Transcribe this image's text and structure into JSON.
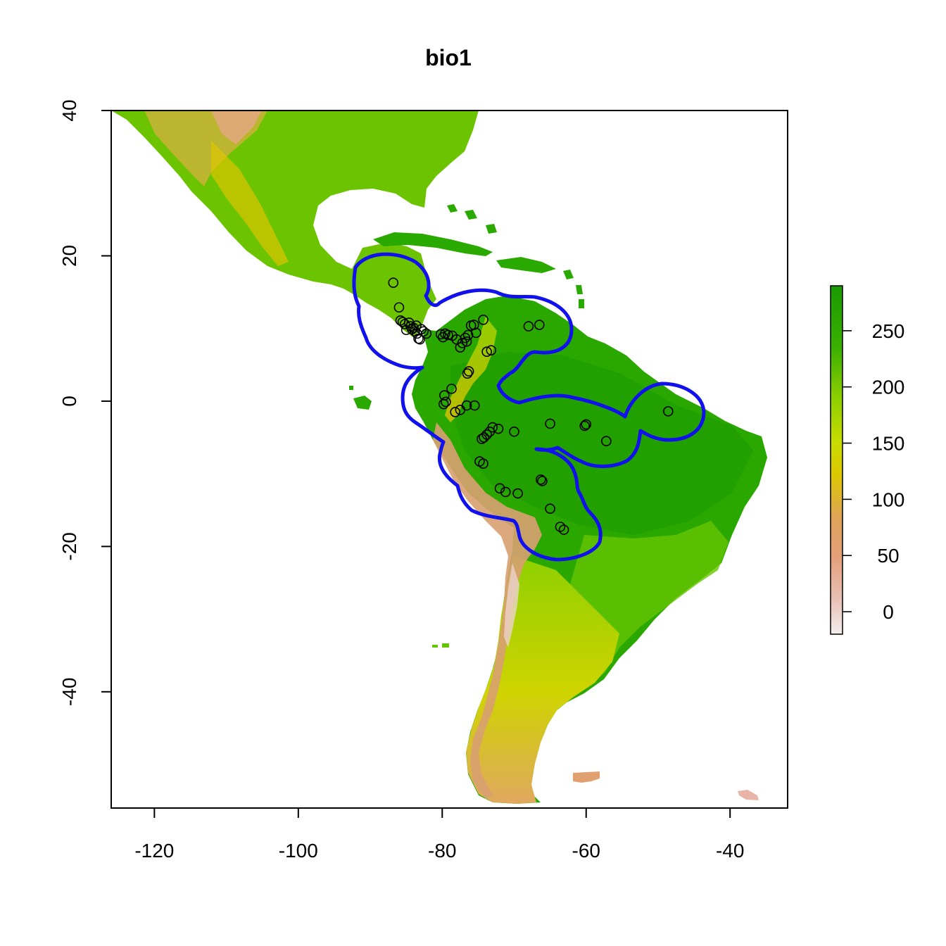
{
  "title": "bio1",
  "chart_data": {
    "type": "raster-map",
    "title": "bio1",
    "xlabel": "",
    "ylabel": "",
    "xlim": [
      -126,
      -32
    ],
    "ylim": [
      -56,
      40
    ],
    "x_ticks": [
      -120,
      -100,
      -80,
      -60,
      -40
    ],
    "y_ticks": [
      40,
      20,
      0,
      -20,
      -40
    ],
    "legend": {
      "placement": "right",
      "range": [
        -20,
        290
      ],
      "ticks": [
        0,
        50,
        100,
        150,
        200,
        250
      ],
      "colors": [
        "#f2f2f2",
        "#e8b3a3",
        "#e19a58",
        "#dcc800",
        "#c6dc00",
        "#7ec800",
        "#2aaa00",
        "#1a9c00"
      ]
    },
    "buffer_outline_color": "#1111ee",
    "occurrence_points": [
      [
        -86.8,
        16.3
      ],
      [
        -86.0,
        12.9
      ],
      [
        -85.8,
        11.1
      ],
      [
        -85.5,
        10.9
      ],
      [
        -85.2,
        10.6
      ],
      [
        -85.0,
        9.8
      ],
      [
        -84.6,
        10.8
      ],
      [
        -84.4,
        10.3
      ],
      [
        -84.2,
        9.9
      ],
      [
        -84.0,
        10.1
      ],
      [
        -83.8,
        9.6
      ],
      [
        -83.6,
        10.4
      ],
      [
        -83.5,
        9.3
      ],
      [
        -83.3,
        8.6
      ],
      [
        -83.1,
        8.5
      ],
      [
        -82.9,
        9.9
      ],
      [
        -82.6,
        9.6
      ],
      [
        -82.2,
        9.3
      ],
      [
        -80.2,
        9.2
      ],
      [
        -79.9,
        8.8
      ],
      [
        -79.6,
        9.3
      ],
      [
        -79.2,
        9.1
      ],
      [
        -78.6,
        9.0
      ],
      [
        -78.0,
        8.5
      ],
      [
        -77.5,
        7.4
      ],
      [
        -77.2,
        8.0
      ],
      [
        -76.8,
        8.7
      ],
      [
        -76.6,
        8.2
      ],
      [
        -76.4,
        9.1
      ],
      [
        -76.0,
        10.4
      ],
      [
        -75.6,
        10.5
      ],
      [
        -75.3,
        9.4
      ],
      [
        -74.3,
        11.2
      ],
      [
        -73.8,
        6.8
      ],
      [
        -73.2,
        7.0
      ],
      [
        -76.3,
        4.1
      ],
      [
        -76.5,
        3.8
      ],
      [
        -78.7,
        1.7
      ],
      [
        -79.7,
        0.8
      ],
      [
        -79.8,
        -0.4
      ],
      [
        -79.5,
        -0.1
      ],
      [
        -78.2,
        -1.5
      ],
      [
        -77.5,
        -1.2
      ],
      [
        -76.6,
        -0.6
      ],
      [
        -75.5,
        -0.6
      ],
      [
        -74.5,
        -5.2
      ],
      [
        -74.2,
        -5.0
      ],
      [
        -73.8,
        -4.6
      ],
      [
        -73.4,
        -4.2
      ],
      [
        -73.0,
        -3.6
      ],
      [
        -72.2,
        -3.8
      ],
      [
        -70.0,
        -4.2
      ],
      [
        -65.0,
        -3.1
      ],
      [
        -60.2,
        -3.4
      ],
      [
        -60.0,
        -3.2
      ],
      [
        -57.2,
        -5.5
      ],
      [
        -48.6,
        -1.4
      ],
      [
        -68.0,
        10.3
      ],
      [
        -66.5,
        10.5
      ],
      [
        -74.8,
        -8.3
      ],
      [
        -74.3,
        -8.6
      ],
      [
        -72.0,
        -12.0
      ],
      [
        -71.2,
        -12.5
      ],
      [
        -69.5,
        -12.7
      ],
      [
        -66.3,
        -10.8
      ],
      [
        -66.1,
        -11.0
      ],
      [
        -65.0,
        -14.8
      ],
      [
        -63.6,
        -17.3
      ],
      [
        -63.1,
        -17.7
      ]
    ]
  }
}
